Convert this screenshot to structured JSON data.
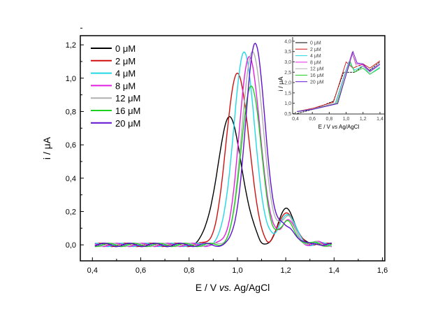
{
  "chart_data": [
    {
      "type": "line",
      "xlabel": "E / V vs. Ag/AgCl",
      "xlabel_parts": [
        "E / V ",
        "vs.",
        " Ag/AgCl"
      ],
      "ylabel": "i / μA",
      "xlim": [
        0.35,
        1.61
      ],
      "ylim": [
        -0.096,
        1.255
      ],
      "xticks": [
        0.4,
        0.6,
        0.8,
        1.0,
        1.2,
        1.4,
        1.6
      ],
      "xtick_labels": [
        "0,4",
        "0,6",
        "0,8",
        "1,0",
        "1,2",
        "1,4",
        "1,6"
      ],
      "yticks": [
        0.0,
        0.2,
        0.4,
        0.6,
        0.8,
        1.0,
        1.2
      ],
      "ytick_labels": [
        "0,0",
        "0,2",
        "0,4",
        "0,6",
        "0,8",
        "1,0",
        "1,2"
      ],
      "legend_position": "top-left",
      "x_range": [
        0.41,
        1.39
      ],
      "series": [
        {
          "name": "0 μM",
          "color": "#000000",
          "peak1": {
            "E": 0.967,
            "i": 0.76,
            "w": 0.05
          },
          "peak2": {
            "E": 1.205,
            "i": 0.22
          }
        },
        {
          "name": "2 μM",
          "color": "#d01010",
          "peak1": {
            "E": 1.0,
            "i": 1.04,
            "w": 0.045
          },
          "peak2": {
            "E": 1.205,
            "i": 0.2
          }
        },
        {
          "name": "4 μM",
          "color": "#20d8e8",
          "peak1": {
            "E": 1.027,
            "i": 1.15,
            "w": 0.043
          },
          "peak2": {
            "E": 1.205,
            "i": 0.19
          }
        },
        {
          "name": "8 μM",
          "color": "#e020e0",
          "peak1": {
            "E": 1.05,
            "i": 1.13,
            "w": 0.042
          },
          "peak2": {
            "E": 1.205,
            "i": 0.15
          }
        },
        {
          "name": "12 μM",
          "color": "#b0b0b0",
          "peak1": {
            "E": 1.062,
            "i": 1.17,
            "w": 0.042
          },
          "peak2": {
            "E": 1.205,
            "i": 0.17
          }
        },
        {
          "name": "16 μM",
          "color": "#20d020",
          "peak1": {
            "E": 1.056,
            "i": 0.96,
            "w": 0.04
          },
          "peak2": {
            "E": 1.205,
            "i": 0.14
          }
        },
        {
          "name": "20 μM",
          "color": "#6010d0",
          "peak1": {
            "E": 1.073,
            "i": 1.2,
            "w": 0.04
          },
          "peak2": {
            "E": 1.205,
            "i": 0.12
          }
        }
      ]
    },
    {
      "type": "line",
      "title": "inset",
      "xlabel": "E / V vs. Ag/AgCl",
      "xlabel_parts": [
        "E / V ",
        "vs",
        " Ag/AgCl"
      ],
      "ylabel": "i / μA",
      "xlim": [
        0.367,
        1.458
      ],
      "ylim": [
        0.48,
        4.2
      ],
      "xticks": [
        0.4,
        0.6,
        0.8,
        1.0,
        1.2,
        1.4
      ],
      "xtick_labels": [
        "0,4",
        "0,6",
        "0,8",
        "1,0",
        "1,2",
        "1,4"
      ],
      "yticks": [
        0.5,
        1.0,
        1.5,
        2.0,
        2.5,
        3.0,
        3.5,
        4.0
      ],
      "ytick_labels": [
        "0,5",
        "1,0",
        "1,5",
        "2,0",
        "2,5",
        "3,0",
        "3,5",
        "4,0"
      ],
      "series": [
        {
          "name": "0 μM",
          "color": "#000000",
          "points": [
            [
              0.42,
              0.5
            ],
            [
              0.6,
              0.7
            ],
            [
              0.85,
              1.1
            ],
            [
              0.97,
              2.5
            ],
            [
              1.1,
              2.5
            ],
            [
              1.2,
              2.8
            ],
            [
              1.28,
              2.6
            ],
            [
              1.4,
              3.0
            ]
          ]
        },
        {
          "name": "2 μM",
          "color": "#d01010",
          "points": [
            [
              0.42,
              0.6
            ],
            [
              0.6,
              0.75
            ],
            [
              0.85,
              1.05
            ],
            [
              1.0,
              3.0
            ],
            [
              1.08,
              2.7
            ],
            [
              1.2,
              2.9
            ],
            [
              1.28,
              2.7
            ],
            [
              1.4,
              3.05
            ]
          ]
        },
        {
          "name": "4 μM",
          "color": "#20d8e8",
          "points": [
            [
              0.42,
              0.6
            ],
            [
              0.6,
              0.72
            ],
            [
              0.87,
              1.0
            ],
            [
              1.03,
              3.0
            ],
            [
              1.1,
              2.6
            ],
            [
              1.2,
              2.8
            ],
            [
              1.28,
              2.4
            ],
            [
              1.4,
              2.75
            ]
          ]
        },
        {
          "name": "8 μM",
          "color": "#e020e0",
          "points": [
            [
              0.42,
              0.6
            ],
            [
              0.6,
              0.72
            ],
            [
              0.88,
              1.0
            ],
            [
              1.07,
              3.45
            ],
            [
              1.12,
              2.9
            ],
            [
              1.2,
              2.85
            ],
            [
              1.28,
              2.5
            ],
            [
              1.4,
              2.9
            ]
          ]
        },
        {
          "name": "12 μM",
          "color": "#b0b0b0",
          "points": [
            [
              0.42,
              0.6
            ],
            [
              0.6,
              0.72
            ],
            [
              0.88,
              1.0
            ],
            [
              1.07,
              3.4
            ],
            [
              1.12,
              2.8
            ],
            [
              1.2,
              2.8
            ],
            [
              1.28,
              2.5
            ],
            [
              1.4,
              2.85
            ]
          ]
        },
        {
          "name": "16 μM",
          "color": "#20d020",
          "points": [
            [
              0.42,
              0.6
            ],
            [
              0.6,
              0.7
            ],
            [
              0.89,
              0.98
            ],
            [
              1.05,
              3.0
            ],
            [
              1.1,
              2.5
            ],
            [
              1.2,
              2.7
            ],
            [
              1.28,
              2.4
            ],
            [
              1.4,
              2.7
            ]
          ]
        },
        {
          "name": "20 μM",
          "color": "#6010d0",
          "points": [
            [
              0.42,
              0.6
            ],
            [
              0.6,
              0.7
            ],
            [
              0.9,
              0.98
            ],
            [
              1.08,
              3.5
            ],
            [
              1.13,
              2.95
            ],
            [
              1.2,
              2.9
            ],
            [
              1.28,
              2.55
            ],
            [
              1.4,
              2.9
            ]
          ]
        }
      ]
    }
  ]
}
